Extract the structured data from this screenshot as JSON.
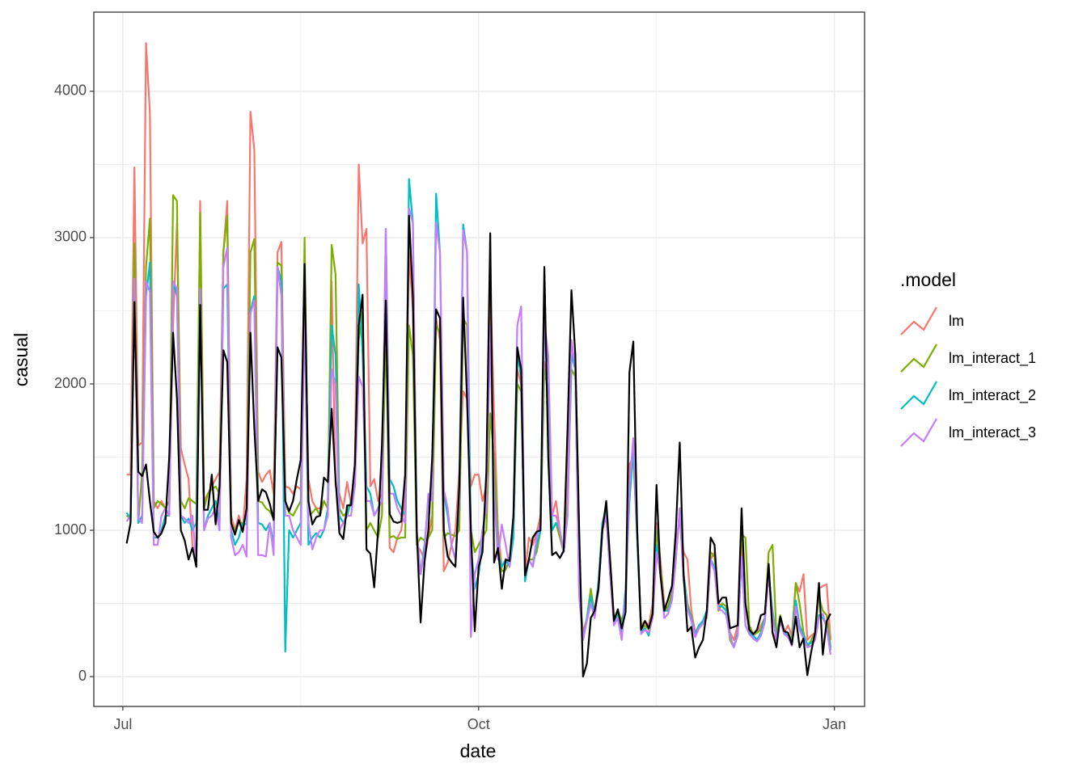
{
  "chart_data": {
    "type": "line",
    "x_label": "date",
    "y_label": "casual",
    "legend_title": ".model",
    "xlim": [
      -7.5,
      191.8
    ],
    "ylim": [
      -204,
      4541
    ],
    "xticks": [
      {
        "value": 0,
        "label": "Jul"
      },
      {
        "value": 92,
        "label": "Oct"
      },
      {
        "value": 184,
        "label": "Jan"
      }
    ],
    "yticks": [
      0,
      1000,
      2000,
      3000,
      4000
    ],
    "minor_xticks": [
      46,
      138
    ],
    "minor_yticks": [
      500,
      1500,
      2500,
      3500
    ],
    "grid": true,
    "legend": "right",
    "x": [
      1,
      2,
      3,
      4,
      5,
      6,
      7,
      8,
      9,
      10,
      11,
      12,
      13,
      14,
      15,
      16,
      17,
      18,
      19,
      20,
      21,
      22,
      23,
      24,
      25,
      26,
      27,
      28,
      29,
      30,
      31,
      32,
      33,
      34,
      35,
      36,
      37,
      38,
      39,
      40,
      41,
      42,
      43,
      44,
      45,
      46,
      47,
      48,
      49,
      50,
      51,
      52,
      53,
      54,
      55,
      56,
      57,
      58,
      59,
      60,
      61,
      62,
      63,
      64,
      65,
      66,
      67,
      68,
      69,
      70,
      71,
      72,
      73,
      74,
      75,
      76,
      77,
      78,
      79,
      80,
      81,
      82,
      83,
      84,
      85,
      86,
      87,
      88,
      89,
      90,
      91,
      92,
      93,
      94,
      95,
      96,
      97,
      98,
      99,
      100,
      101,
      102,
      103,
      104,
      105,
      106,
      107,
      108,
      109,
      110,
      111,
      112,
      113,
      114,
      115,
      116,
      117,
      118,
      119,
      120,
      121,
      122,
      123,
      124,
      125,
      126,
      127,
      128,
      129,
      130,
      131,
      132,
      133,
      134,
      135,
      136,
      137,
      138,
      139,
      140,
      141,
      142,
      143,
      144,
      145,
      146,
      147,
      148,
      149,
      150,
      151,
      152,
      153,
      154,
      155,
      156,
      157,
      158,
      159,
      160,
      161,
      162,
      163,
      164,
      165,
      166,
      167,
      168,
      169,
      170,
      171,
      172,
      173,
      174,
      175,
      176,
      177,
      178,
      179,
      180,
      181,
      182,
      183
    ],
    "series": [
      {
        "name": "lm",
        "color": "#F8766D",
        "values": [
          1380,
          1380,
          3480,
          1580,
          1600,
          4330,
          3850,
          1200,
          1150,
          1200,
          1150,
          1200,
          2400,
          3100,
          1560,
          1450,
          1350,
          900,
          800,
          3250,
          1200,
          1250,
          1300,
          1350,
          1400,
          2900,
          3250,
          1100,
          1000,
          1100,
          1000,
          1350,
          3860,
          3600,
          1400,
          1330,
          1380,
          1410,
          1250,
          2900,
          2970,
          1300,
          1290,
          1250,
          1300,
          1280,
          2650,
          1350,
          1200,
          1150,
          1150,
          1200,
          1150,
          2700,
          1300,
          1250,
          1150,
          1330,
          1180,
          1450,
          3500,
          2960,
          3060,
          1300,
          1350,
          1200,
          1250,
          2680,
          880,
          850,
          950,
          1000,
          1250,
          2900,
          2500,
          900,
          860,
          800,
          950,
          1100,
          2450,
          2300,
          720,
          780,
          900,
          1000,
          1400,
          1950,
          1900,
          1300,
          1380,
          1380,
          1200,
          1300,
          2700,
          1800,
          1000,
          750,
          800,
          780,
          1000,
          2100,
          2000,
          700,
          950,
          900,
          980,
          1100,
          2150,
          1900,
          1100,
          1200,
          1000,
          850,
          1300,
          2300,
          2100,
          600,
          300,
          400,
          550,
          450,
          650,
          1050,
          1150,
          800,
          400,
          450,
          380,
          450,
          1450,
          1500,
          950,
          350,
          380,
          350,
          500,
          1050,
          800,
          500,
          450,
          550,
          900,
          1100,
          850,
          800,
          450,
          300,
          350,
          380,
          400,
          800,
          850,
          500,
          480,
          450,
          300,
          250,
          350,
          900,
          500,
          300,
          280,
          300,
          350,
          400,
          750,
          300,
          250,
          400,
          300,
          350,
          280,
          640,
          580,
          700,
          250,
          280,
          300,
          600,
          620,
          630,
          250
        ]
      },
      {
        "name": "lm_interact_1",
        "color": "#7CAE00",
        "values": [
          1100,
          1080,
          2960,
          1050,
          1400,
          2800,
          3130,
          1150,
          1200,
          1180,
          1150,
          1200,
          3290,
          3250,
          1200,
          1150,
          1220,
          1200,
          1180,
          3170,
          1150,
          1250,
          1280,
          1300,
          1250,
          2900,
          3150,
          1050,
          1000,
          1050,
          1050,
          1100,
          2900,
          2990,
          1200,
          1190,
          1150,
          1130,
          1080,
          2830,
          2810,
          1180,
          1120,
          1100,
          1150,
          1200,
          3000,
          1100,
          1120,
          1150,
          1100,
          1200,
          1150,
          2950,
          2750,
          1150,
          1100,
          1120,
          1200,
          1300,
          2300,
          2500,
          1000,
          1050,
          1000,
          950,
          1100,
          2400,
          950,
          960,
          940,
          950,
          950,
          2400,
          2200,
          900,
          950,
          930,
          950,
          1000,
          2400,
          2350,
          950,
          980,
          970,
          960,
          1000,
          2450,
          2400,
          1000,
          850,
          900,
          950,
          1000,
          1800,
          1500,
          900,
          720,
          730,
          800,
          1000,
          2000,
          1950,
          700,
          800,
          800,
          850,
          1000,
          2100,
          1950,
          1000,
          1050,
          950,
          850,
          1200,
          2100,
          2050,
          600,
          250,
          400,
          600,
          420,
          600,
          1000,
          1100,
          700,
          400,
          450,
          380,
          500,
          1300,
          1550,
          1000,
          320,
          350,
          320,
          450,
          1000,
          750,
          450,
          480,
          570,
          850,
          1100,
          700,
          500,
          400,
          280,
          350,
          380,
          450,
          850,
          820,
          450,
          500,
          480,
          250,
          200,
          300,
          970,
          950,
          350,
          290,
          300,
          320,
          400,
          850,
          900,
          280,
          420,
          310,
          300,
          250,
          640,
          500,
          300,
          200,
          250,
          300,
          550,
          450,
          420,
          200
        ]
      },
      {
        "name": "lm_interact_2",
        "color": "#00BFC4",
        "values": [
          1120,
          1080,
          2700,
          1050,
          1100,
          2600,
          2830,
          950,
          950,
          1000,
          1100,
          1100,
          2700,
          2600,
          1100,
          1050,
          1080,
          1000,
          1050,
          2650,
          1000,
          1100,
          1150,
          1200,
          1050,
          2650,
          2680,
          1000,
          900,
          950,
          1050,
          1040,
          2500,
          2600,
          1050,
          1040,
          1000,
          1050,
          900,
          2800,
          2700,
          170,
          1000,
          950,
          1000,
          1050,
          2550,
          900,
          950,
          980,
          950,
          1000,
          1150,
          2400,
          2200,
          1100,
          1050,
          1100,
          1200,
          1300,
          2680,
          2200,
          1300,
          1250,
          1100,
          1150,
          1200,
          3060,
          1350,
          1300,
          1200,
          1150,
          1100,
          3400,
          3100,
          1000,
          700,
          900,
          1200,
          1250,
          3300,
          2900,
          1250,
          1100,
          900,
          800,
          1300,
          3090,
          2900,
          900,
          600,
          700,
          900,
          1300,
          2350,
          1300,
          850,
          750,
          800,
          750,
          950,
          2200,
          2050,
          650,
          800,
          750,
          900,
          1000,
          2350,
          2150,
          1000,
          1050,
          1000,
          850,
          1100,
          2200,
          2100,
          600,
          250,
          400,
          550,
          420,
          650,
          1050,
          1150,
          700,
          380,
          430,
          300,
          600,
          1200,
          1550,
          950,
          300,
          330,
          280,
          430,
          900,
          700,
          450,
          450,
          530,
          800,
          1150,
          700,
          480,
          400,
          280,
          350,
          380,
          450,
          800,
          750,
          480,
          480,
          450,
          280,
          200,
          300,
          800,
          350,
          300,
          280,
          250,
          300,
          400,
          700,
          450,
          260,
          400,
          300,
          280,
          230,
          520,
          350,
          280,
          220,
          230,
          260,
          420,
          400,
          350,
          180
        ]
      },
      {
        "name": "lm_interact_3",
        "color": "#C77CFF",
        "values": [
          1060,
          1100,
          2720,
          1080,
          1050,
          2700,
          2630,
          900,
          900,
          1100,
          1150,
          1100,
          2700,
          2650,
          1100,
          1080,
          1050,
          1100,
          780,
          2650,
          1000,
          1080,
          1100,
          1150,
          1000,
          2800,
          2930,
          950,
          830,
          850,
          900,
          820,
          2480,
          2570,
          830,
          830,
          820,
          1050,
          830,
          2800,
          2600,
          1100,
          1100,
          1000,
          950,
          900,
          2500,
          1050,
          870,
          950,
          1000,
          1000,
          1100,
          2100,
          2000,
          1000,
          1050,
          1100,
          1100,
          1300,
          2050,
          1980,
          1200,
          1200,
          1100,
          1150,
          1200,
          3060,
          1250,
          1250,
          1150,
          1100,
          1050,
          3200,
          3100,
          1000,
          700,
          850,
          1250,
          1200,
          3100,
          2900,
          1280,
          1150,
          900,
          800,
          1200,
          3050,
          2900,
          270,
          700,
          800,
          1000,
          1150,
          2400,
          1250,
          800,
          1040,
          900,
          750,
          1100,
          2400,
          2530,
          700,
          800,
          750,
          950,
          1050,
          2420,
          2200,
          1100,
          1100,
          1000,
          850,
          1100,
          2300,
          2100,
          550,
          250,
          380,
          500,
          400,
          600,
          1000,
          1100,
          700,
          350,
          400,
          250,
          550,
          1300,
          1630,
          1000,
          290,
          320,
          300,
          400,
          850,
          700,
          400,
          430,
          520,
          800,
          1150,
          650,
          460,
          380,
          270,
          330,
          360,
          420,
          800,
          720,
          460,
          450,
          420,
          270,
          200,
          280,
          820,
          350,
          290,
          260,
          240,
          280,
          370,
          700,
          420,
          250,
          380,
          290,
          270,
          210,
          480,
          320,
          260,
          200,
          210,
          250,
          400,
          430,
          330,
          150
        ]
      },
      {
        "color": "#000000",
        "values": [
          910,
          1050,
          2560,
          1400,
          1370,
          1450,
          1200,
          990,
          950,
          980,
          1050,
          1500,
          2350,
          1900,
          1000,
          930,
          800,
          880,
          750,
          2540,
          1140,
          1140,
          1380,
          1040,
          1300,
          2230,
          2150,
          1050,
          970,
          1070,
          990,
          1150,
          2350,
          1700,
          1200,
          1280,
          1260,
          1180,
          1070,
          2250,
          2180,
          1200,
          1130,
          1200,
          1350,
          1480,
          2820,
          1200,
          1040,
          1090,
          1100,
          1360,
          1330,
          1830,
          1350,
          980,
          940,
          1170,
          1170,
          1450,
          2400,
          2610,
          870,
          840,
          610,
          1000,
          1580,
          2570,
          1110,
          1060,
          1050,
          1060,
          1380,
          3150,
          2600,
          1000,
          370,
          780,
          1000,
          1500,
          2510,
          2450,
          1000,
          820,
          780,
          750,
          1300,
          2590,
          1900,
          1000,
          310,
          750,
          850,
          1400,
          3030,
          780,
          880,
          600,
          800,
          790,
          1100,
          2250,
          2100,
          690,
          800,
          950,
          990,
          1000,
          2800,
          1500,
          830,
          850,
          810,
          860,
          1700,
          2640,
          2200,
          1000,
          0,
          90,
          400,
          450,
          600,
          1000,
          1200,
          800,
          380,
          460,
          330,
          440,
          2080,
          2290,
          1000,
          320,
          380,
          330,
          430,
          1310,
          700,
          450,
          530,
          620,
          1000,
          1600,
          700,
          310,
          340,
          130,
          200,
          250,
          450,
          950,
          900,
          500,
          540,
          540,
          330,
          340,
          350,
          1150,
          500,
          320,
          290,
          320,
          420,
          430,
          770,
          300,
          200,
          410,
          310,
          300,
          220,
          410,
          200,
          260,
          10,
          170,
          300,
          640,
          150,
          380,
          430
        ]
      }
    ]
  }
}
